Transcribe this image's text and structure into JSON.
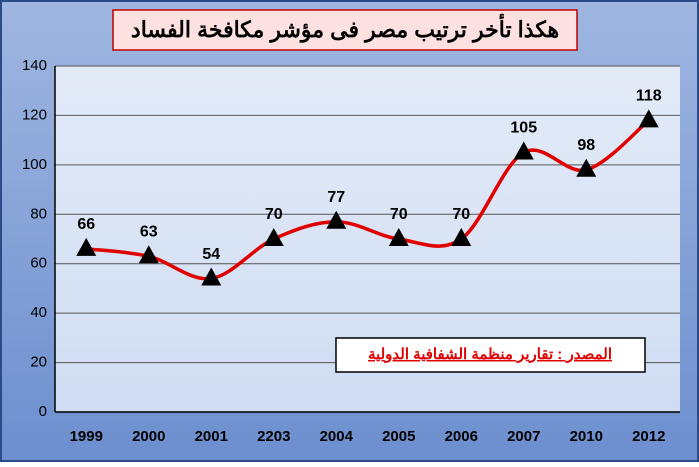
{
  "chart_data": {
    "type": "line",
    "title": "هكذا تأخر ترتيب مصر فى مؤشر مكافخة الفساد",
    "annotation": "المصدر : تقارير منظمة الشفافية الدولية",
    "categories": [
      "1999",
      "2000",
      "2001",
      "2203",
      "2004",
      "2005",
      "2006",
      "2007",
      "2010",
      "2012"
    ],
    "values": [
      66,
      63,
      54,
      70,
      77,
      70,
      70,
      105,
      98,
      118
    ],
    "color": "#e00000",
    "marker_color": "#000000",
    "ylim": [
      0,
      140
    ],
    "yticks": [
      0,
      20,
      40,
      60,
      80,
      100,
      120,
      140
    ],
    "grid": true
  }
}
